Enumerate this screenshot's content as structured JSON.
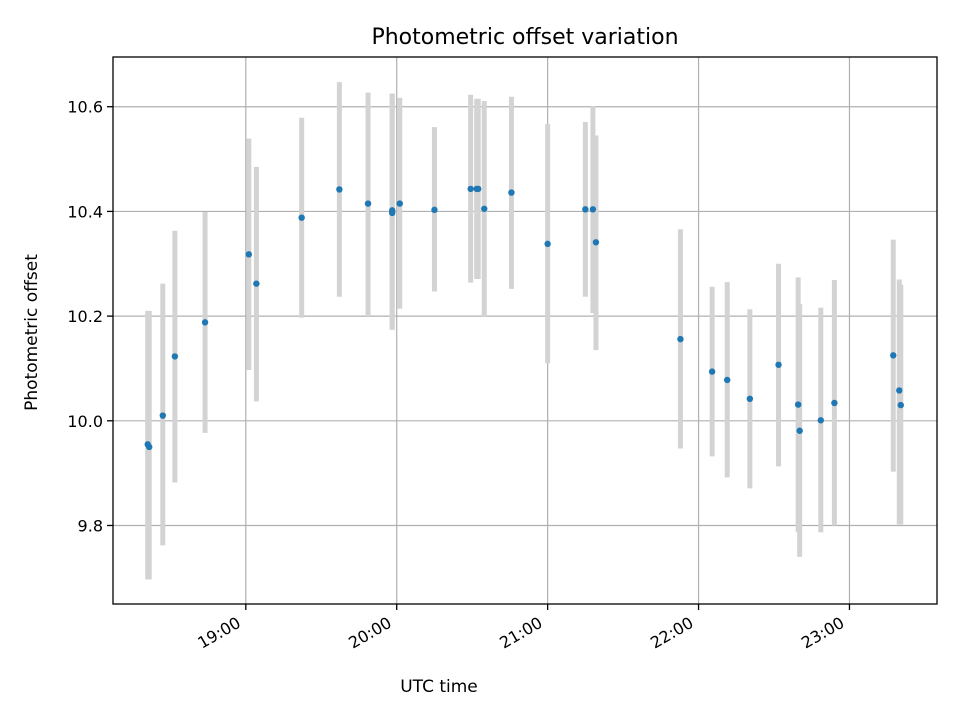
{
  "chart_data": {
    "type": "scatter",
    "title": "Photometric offset variation",
    "xlabel": "UTC time",
    "ylabel": "Photometric offset",
    "x_unit": "UTC time (hours of day, decimal)",
    "xlim": [
      18.12,
      23.58
    ],
    "ylim": [
      9.65,
      10.695
    ],
    "grid": true,
    "legend": "none",
    "marker_color": "#1f77b4",
    "errorbar_color": "#d3d3d3",
    "x_ticks": [
      {
        "value": 19,
        "label": "19:00"
      },
      {
        "value": 20,
        "label": "20:00"
      },
      {
        "value": 21,
        "label": "21:00"
      },
      {
        "value": 22,
        "label": "22:00"
      },
      {
        "value": 23,
        "label": "23:00"
      }
    ],
    "y_ticks": [
      {
        "value": 9.8,
        "label": "9.8"
      },
      {
        "value": 10.0,
        "label": "10.0"
      },
      {
        "value": 10.2,
        "label": "10.2"
      },
      {
        "value": 10.4,
        "label": "10.4"
      },
      {
        "value": 10.6,
        "label": "10.6"
      }
    ],
    "points": [
      {
        "x": 18.35,
        "y": 9.955,
        "lo": 9.697,
        "hi": 10.21
      },
      {
        "x": 18.36,
        "y": 9.95,
        "lo": 9.697,
        "hi": 10.21
      },
      {
        "x": 18.45,
        "y": 10.01,
        "lo": 9.762,
        "hi": 10.262
      },
      {
        "x": 18.53,
        "y": 10.123,
        "lo": 9.882,
        "hi": 10.363
      },
      {
        "x": 18.73,
        "y": 10.188,
        "lo": 9.977,
        "hi": 10.399
      },
      {
        "x": 19.02,
        "y": 10.318,
        "lo": 10.097,
        "hi": 10.539
      },
      {
        "x": 19.07,
        "y": 10.262,
        "lo": 10.037,
        "hi": 10.485
      },
      {
        "x": 19.37,
        "y": 10.388,
        "lo": 10.197,
        "hi": 10.579
      },
      {
        "x": 19.62,
        "y": 10.442,
        "lo": 10.237,
        "hi": 10.647
      },
      {
        "x": 19.81,
        "y": 10.415,
        "lo": 10.202,
        "hi": 10.627
      },
      {
        "x": 19.97,
        "y": 10.402,
        "lo": 10.174,
        "hi": 10.625
      },
      {
        "x": 19.97,
        "y": 10.397,
        "lo": 10.174,
        "hi": 10.625
      },
      {
        "x": 20.02,
        "y": 10.415,
        "lo": 10.214,
        "hi": 10.617
      },
      {
        "x": 20.25,
        "y": 10.403,
        "lo": 10.247,
        "hi": 10.561
      },
      {
        "x": 20.49,
        "y": 10.443,
        "lo": 10.264,
        "hi": 10.623
      },
      {
        "x": 20.53,
        "y": 10.443,
        "lo": 10.271,
        "hi": 10.615
      },
      {
        "x": 20.54,
        "y": 10.443,
        "lo": 10.271,
        "hi": 10.615
      },
      {
        "x": 20.58,
        "y": 10.405,
        "lo": 10.198,
        "hi": 10.611
      },
      {
        "x": 20.76,
        "y": 10.436,
        "lo": 10.252,
        "hi": 10.619
      },
      {
        "x": 21.0,
        "y": 10.338,
        "lo": 10.11,
        "hi": 10.567
      },
      {
        "x": 21.25,
        "y": 10.404,
        "lo": 10.237,
        "hi": 10.571
      },
      {
        "x": 21.3,
        "y": 10.404,
        "lo": 10.206,
        "hi": 10.601
      },
      {
        "x": 21.32,
        "y": 10.341,
        "lo": 10.135,
        "hi": 10.545
      },
      {
        "x": 21.88,
        "y": 10.156,
        "lo": 9.947,
        "hi": 10.366
      },
      {
        "x": 22.09,
        "y": 10.094,
        "lo": 9.932,
        "hi": 10.256
      },
      {
        "x": 22.19,
        "y": 10.078,
        "lo": 9.892,
        "hi": 10.265
      },
      {
        "x": 22.34,
        "y": 10.042,
        "lo": 9.871,
        "hi": 10.213
      },
      {
        "x": 22.53,
        "y": 10.107,
        "lo": 9.913,
        "hi": 10.3
      },
      {
        "x": 22.66,
        "y": 10.031,
        "lo": 9.787,
        "hi": 10.274
      },
      {
        "x": 22.67,
        "y": 9.981,
        "lo": 9.74,
        "hi": 10.223
      },
      {
        "x": 22.81,
        "y": 10.001,
        "lo": 9.787,
        "hi": 10.216
      },
      {
        "x": 22.9,
        "y": 10.034,
        "lo": 9.8,
        "hi": 10.269
      },
      {
        "x": 23.29,
        "y": 10.125,
        "lo": 9.903,
        "hi": 10.346
      },
      {
        "x": 23.33,
        "y": 10.058,
        "lo": 9.802,
        "hi": 10.27
      },
      {
        "x": 23.34,
        "y": 10.03,
        "lo": 9.802,
        "hi": 10.26
      }
    ]
  }
}
